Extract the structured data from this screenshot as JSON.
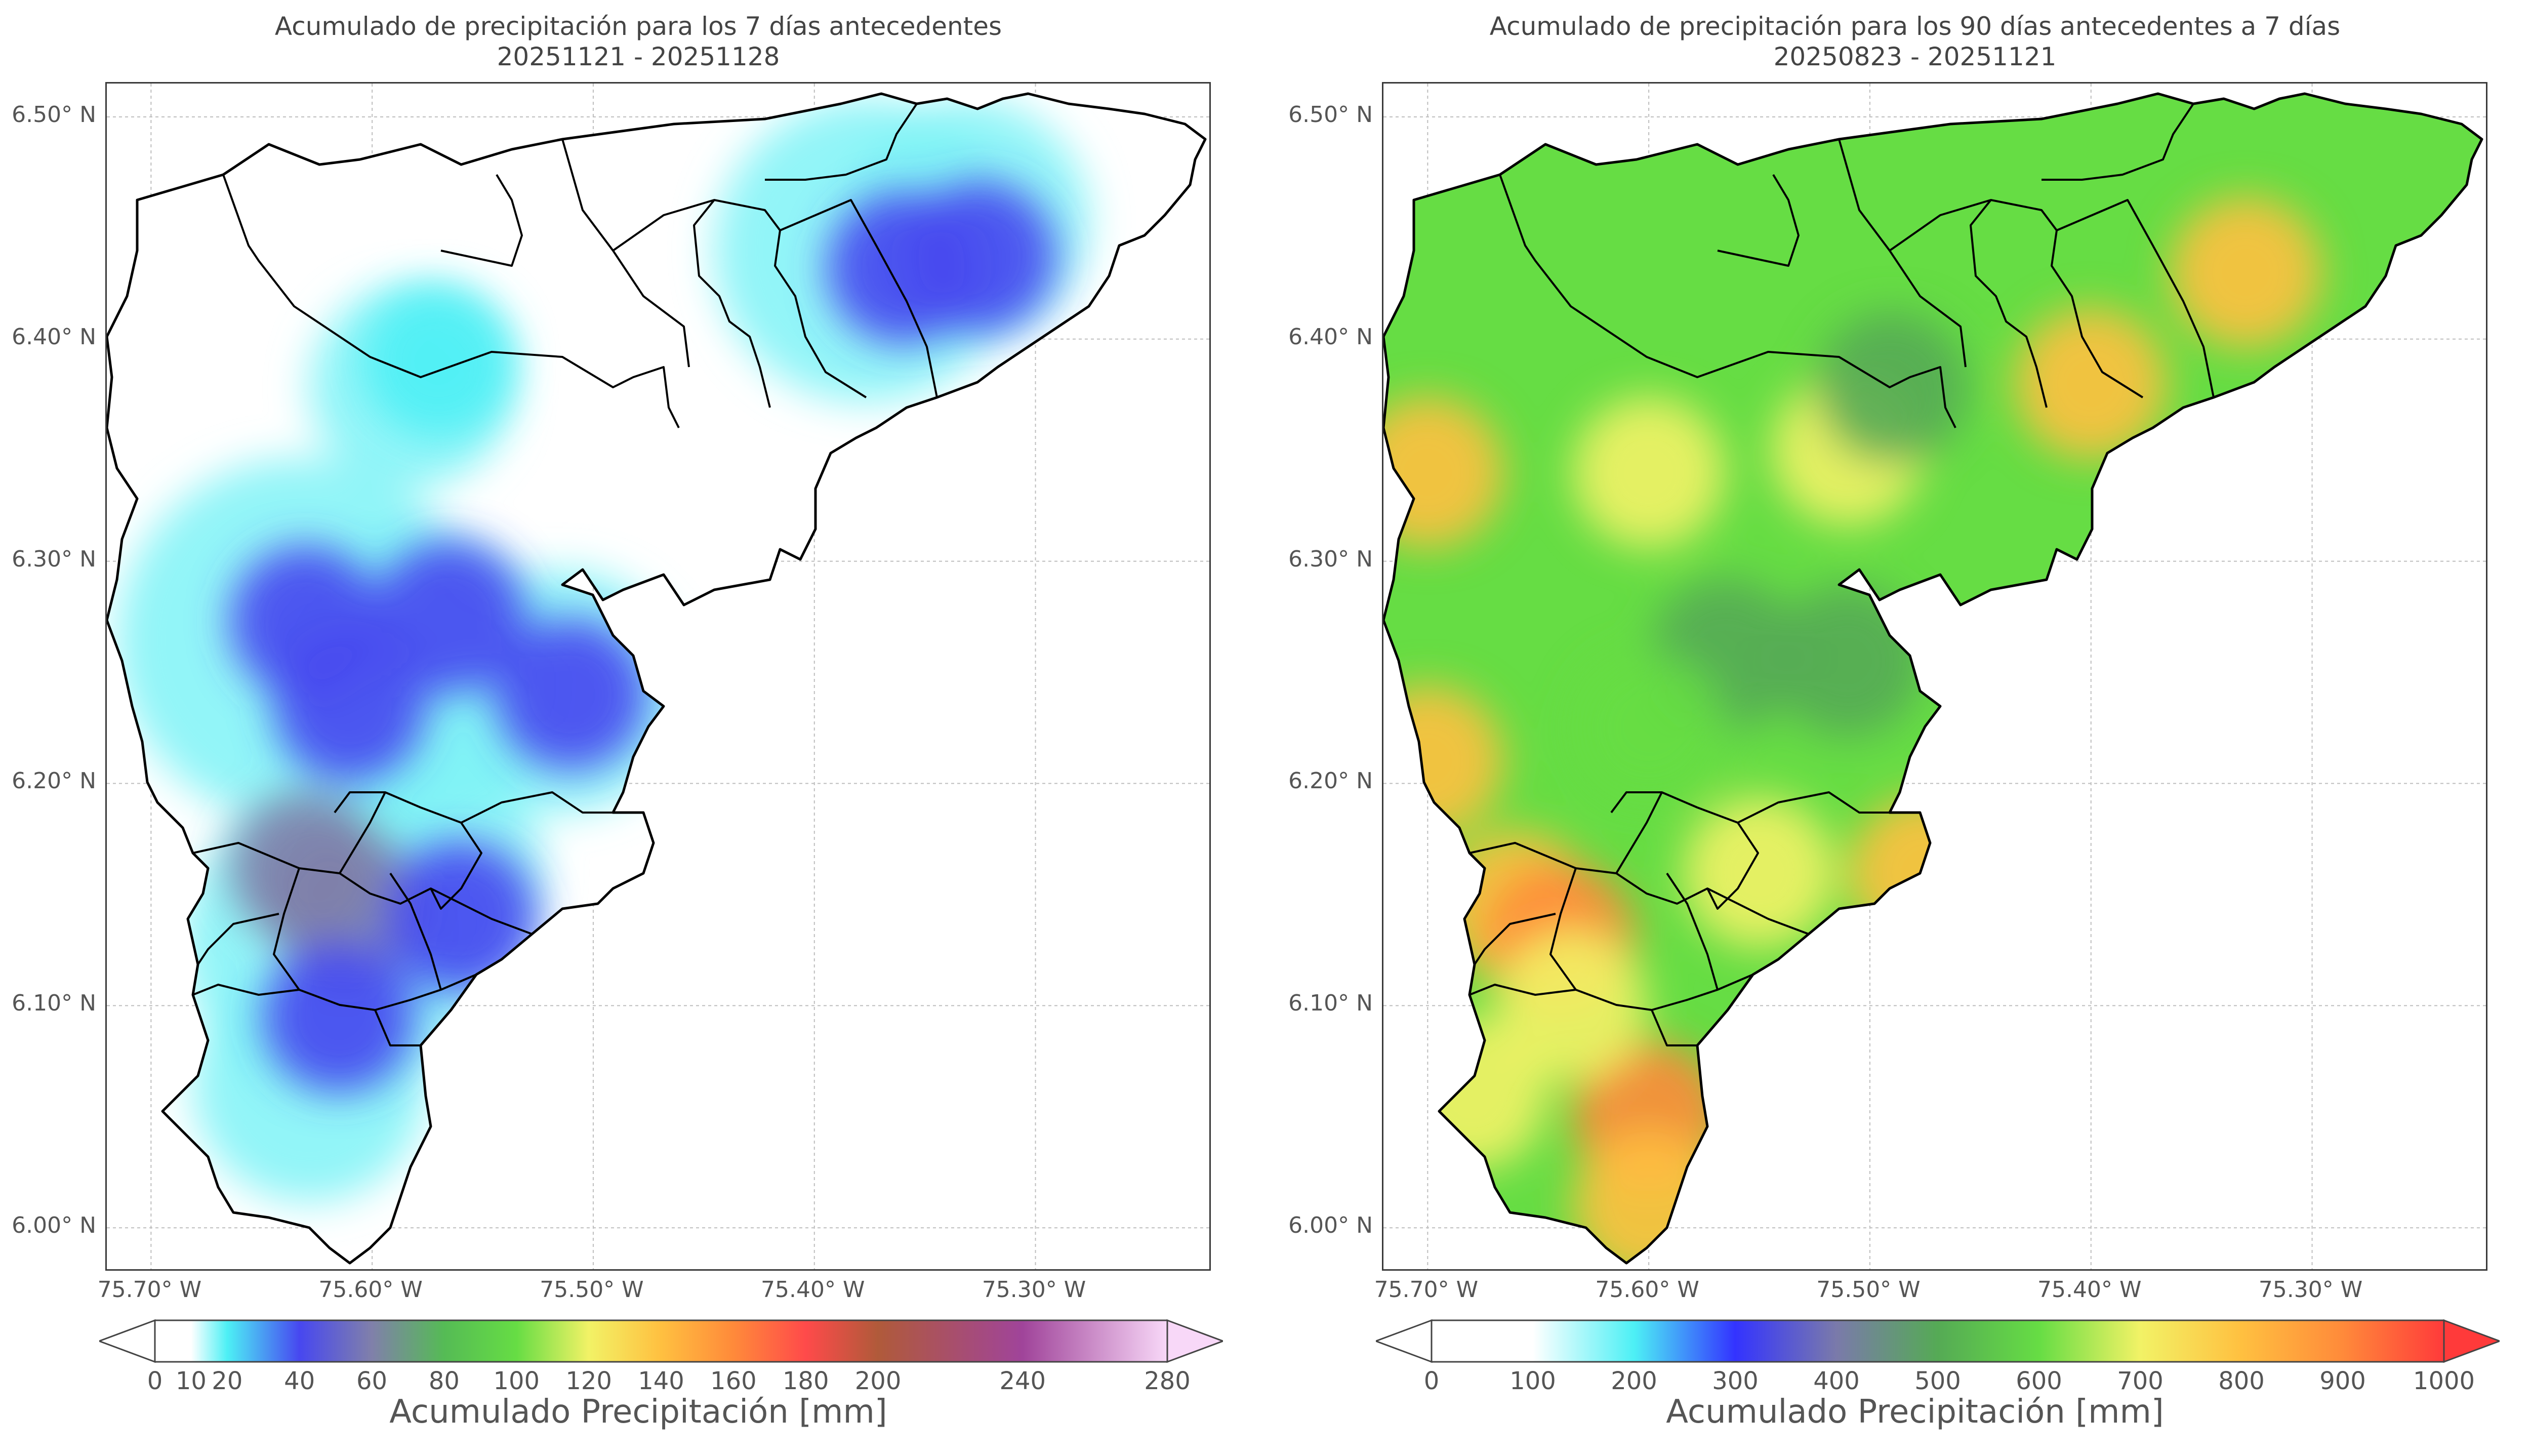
{
  "chart_data": [
    {
      "type": "heatmap",
      "title": "Acumulado de precipitación para los 7 días antecedentes",
      "subtitle": "20251121 - 20251128",
      "xlim": [
        -75.72,
        -75.22
      ],
      "ylim": [
        5.98,
        6.515
      ],
      "xticks": [
        {
          "value": -75.7,
          "label": "75.70° W"
        },
        {
          "value": -75.6,
          "label": "75.60° W"
        },
        {
          "value": -75.5,
          "label": "75.50° W"
        },
        {
          "value": -75.4,
          "label": "75.40° W"
        },
        {
          "value": -75.3,
          "label": "75.30° W"
        }
      ],
      "yticks": [
        {
          "value": 6.5,
          "label": "6.50° N"
        },
        {
          "value": 6.4,
          "label": "6.40° N"
        },
        {
          "value": 6.3,
          "label": "6.30° N"
        },
        {
          "value": 6.2,
          "label": "6.20° N"
        },
        {
          "value": 6.1,
          "label": "6.10° N"
        },
        {
          "value": 6.0,
          "label": "6.00° N"
        }
      ],
      "grid": true,
      "colorbar": {
        "label": "Acumulado Precipitación [mm]",
        "range": [
          0,
          280
        ],
        "ticks": [
          "0",
          "10",
          "20",
          "40",
          "60",
          "80",
          "100",
          "120",
          "140",
          "160",
          "180",
          "200",
          "240",
          "280"
        ],
        "tick_values": [
          0,
          10,
          20,
          40,
          60,
          80,
          100,
          120,
          140,
          160,
          180,
          200,
          240,
          280
        ],
        "stops": [
          {
            "value": 0,
            "color": "#ffffff"
          },
          {
            "value": 10,
            "color": "#ffffff"
          },
          {
            "value": 20,
            "color": "#4df0f5"
          },
          {
            "value": 40,
            "color": "#4747f0"
          },
          {
            "value": 60,
            "color": "#8080aa"
          },
          {
            "value": 80,
            "color": "#55bb55"
          },
          {
            "value": 100,
            "color": "#66dd44"
          },
          {
            "value": 120,
            "color": "#f2f266"
          },
          {
            "value": 140,
            "color": "#ffc040"
          },
          {
            "value": 160,
            "color": "#ff8a3a"
          },
          {
            "value": 180,
            "color": "#ff4a4a"
          },
          {
            "value": 200,
            "color": "#b05a3a"
          },
          {
            "value": 240,
            "color": "#a0449a"
          },
          {
            "value": 280,
            "color": "#f8d8f8"
          }
        ]
      },
      "hotspots": [
        {
          "lon": -75.63,
          "lat": 6.273,
          "value": 40
        },
        {
          "lon": -75.61,
          "lat": 6.235,
          "value": 38
        },
        {
          "lon": -75.565,
          "lat": 6.275,
          "value": 36
        },
        {
          "lon": -75.51,
          "lat": 6.24,
          "value": 35
        },
        {
          "lon": -75.612,
          "lat": 6.145,
          "value": 52
        },
        {
          "lon": -75.63,
          "lat": 6.162,
          "value": 42
        },
        {
          "lon": -75.615,
          "lat": 6.095,
          "value": 40
        },
        {
          "lon": -75.56,
          "lat": 6.14,
          "value": 25
        },
        {
          "lon": -75.36,
          "lat": 6.432,
          "value": 22
        },
        {
          "lon": -75.325,
          "lat": 6.437,
          "value": 22
        },
        {
          "lon": -75.57,
          "lat": 6.39,
          "value": 15
        }
      ]
    },
    {
      "type": "heatmap",
      "title": "Acumulado de precipitación para los 90 días antecedentes a 7 días",
      "subtitle": "20250823 - 20251121",
      "xlim": [
        -75.72,
        -75.22
      ],
      "ylim": [
        5.98,
        6.515
      ],
      "xticks": [
        {
          "value": -75.7,
          "label": "75.70° W"
        },
        {
          "value": -75.6,
          "label": "75.60° W"
        },
        {
          "value": -75.5,
          "label": "75.50° W"
        },
        {
          "value": -75.4,
          "label": "75.40° W"
        },
        {
          "value": -75.3,
          "label": "75.30° W"
        }
      ],
      "yticks": [
        {
          "value": 6.5,
          "label": "6.50° N"
        },
        {
          "value": 6.4,
          "label": "6.40° N"
        },
        {
          "value": 6.3,
          "label": "6.30° N"
        },
        {
          "value": 6.2,
          "label": "6.20° N"
        },
        {
          "value": 6.1,
          "label": "6.10° N"
        },
        {
          "value": 6.0,
          "label": "6.00° N"
        }
      ],
      "grid": true,
      "colorbar": {
        "label": "Acumulado Precipitación [mm]",
        "range": [
          0,
          1000
        ],
        "ticks": [
          "0",
          "100",
          "200",
          "300",
          "400",
          "500",
          "600",
          "700",
          "800",
          "900",
          "1000"
        ],
        "tick_values": [
          0,
          100,
          200,
          300,
          400,
          500,
          600,
          700,
          800,
          900,
          1000
        ],
        "stops": [
          {
            "value": 0,
            "color": "#ffffff"
          },
          {
            "value": 100,
            "color": "#ffffff"
          },
          {
            "value": 200,
            "color": "#4df0f5"
          },
          {
            "value": 300,
            "color": "#3333ff"
          },
          {
            "value": 400,
            "color": "#7a7aaa"
          },
          {
            "value": 500,
            "color": "#55aa55"
          },
          {
            "value": 600,
            "color": "#66dd44"
          },
          {
            "value": 700,
            "color": "#f2f266"
          },
          {
            "value": 800,
            "color": "#ffc040"
          },
          {
            "value": 900,
            "color": "#ff8a3a"
          },
          {
            "value": 1000,
            "color": "#ff3a3a"
          }
        ]
      },
      "base_value": 600,
      "hotspots": [
        {
          "lon": -75.33,
          "lat": 6.43,
          "value": 780
        },
        {
          "lon": -75.4,
          "lat": 6.38,
          "value": 720
        },
        {
          "lon": -75.7,
          "lat": 6.34,
          "value": 740
        },
        {
          "lon": -75.6,
          "lat": 6.34,
          "value": 700
        },
        {
          "lon": -75.51,
          "lat": 6.35,
          "value": 700
        },
        {
          "lon": -75.49,
          "lat": 6.378,
          "value": 420
        },
        {
          "lon": -75.565,
          "lat": 6.258,
          "value": 440
        },
        {
          "lon": -75.51,
          "lat": 6.255,
          "value": 470
        },
        {
          "lon": -75.6,
          "lat": 6.225,
          "value": 530
        },
        {
          "lon": -75.7,
          "lat": 6.21,
          "value": 760
        },
        {
          "lon": -75.475,
          "lat": 6.16,
          "value": 760
        },
        {
          "lon": -75.55,
          "lat": 6.16,
          "value": 700
        },
        {
          "lon": -75.66,
          "lat": 6.145,
          "value": 800
        },
        {
          "lon": -75.64,
          "lat": 6.13,
          "value": 840
        },
        {
          "lon": -75.6,
          "lat": 6.05,
          "value": 900
        },
        {
          "lon": -75.6,
          "lat": 6.01,
          "value": 780
        },
        {
          "lon": -75.68,
          "lat": 6.06,
          "value": 620
        },
        {
          "lon": -75.635,
          "lat": 6.1,
          "value": 640
        }
      ]
    }
  ]
}
